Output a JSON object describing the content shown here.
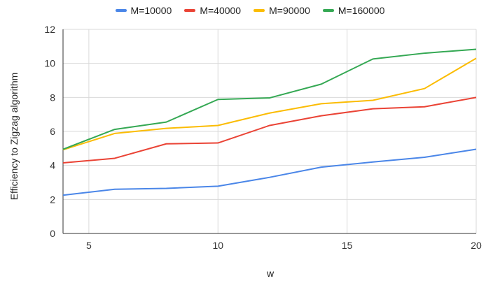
{
  "chart_data": {
    "type": "line",
    "xlabel": "w",
    "ylabel": "Efficiency to Zigzag algorithm",
    "xlim": [
      4,
      20
    ],
    "ylim": [
      0,
      12
    ],
    "x_ticks": [
      5,
      10,
      15,
      20
    ],
    "y_ticks": [
      0,
      2,
      4,
      6,
      8,
      10,
      12
    ],
    "grid": true,
    "legend_position": "top",
    "x": [
      4,
      6,
      8,
      10,
      12,
      14,
      16,
      18,
      20
    ],
    "series": [
      {
        "name": "M=10000",
        "color": "#4a86e8",
        "values": [
          2.25,
          2.6,
          2.65,
          2.78,
          3.3,
          3.9,
          4.2,
          4.48,
          4.95
        ]
      },
      {
        "name": "M=40000",
        "color": "#ea4335",
        "values": [
          4.15,
          4.42,
          5.27,
          5.32,
          6.35,
          6.92,
          7.33,
          7.45,
          8.0
        ]
      },
      {
        "name": "M=90000",
        "color": "#fbbc04",
        "values": [
          4.92,
          5.88,
          6.18,
          6.35,
          7.08,
          7.63,
          7.83,
          8.52,
          10.3
        ]
      },
      {
        "name": "M=160000",
        "color": "#34a853",
        "values": [
          4.95,
          6.12,
          6.55,
          7.88,
          7.97,
          8.78,
          10.26,
          10.6,
          10.83
        ]
      }
    ]
  }
}
